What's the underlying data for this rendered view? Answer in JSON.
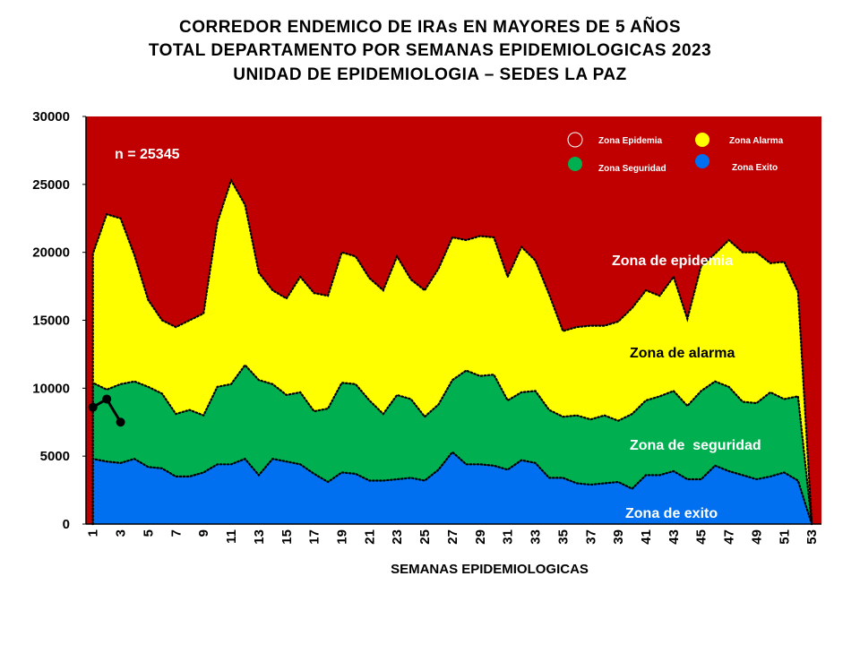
{
  "title_lines": [
    "CORREDOR ENDEMICO DE IRAs EN MAYORES DE 5 AÑOS",
    "TOTAL DEPARTAMENTO POR SEMANAS EPIDEMIOLOGICAS 2023",
    "UNIDAD DE EPIDEMIOLOGIA – SEDES LA PAZ"
  ],
  "colors": {
    "epidemia": "#c00000",
    "alarma": "#ffff00",
    "seguridad": "#00b050",
    "exito": "#0070f0"
  },
  "chart_data": {
    "type": "area",
    "xlabel": "SEMANAS EPIDEMIOLOGICAS",
    "ylabel": "",
    "ylim": [
      0,
      30000
    ],
    "yticks": [
      "0",
      "5000",
      "10000",
      "15000",
      "20000",
      "25000",
      "30000"
    ],
    "xticks": [
      "1",
      "3",
      "5",
      "7",
      "9",
      "11",
      "13",
      "15",
      "17",
      "19",
      "21",
      "23",
      "25",
      "27",
      "29",
      "31",
      "33",
      "35",
      "37",
      "39",
      "41",
      "43",
      "45",
      "47",
      "49",
      "51",
      "53"
    ],
    "n_label": "n = 25345",
    "x": [
      1,
      2,
      3,
      4,
      5,
      6,
      7,
      8,
      9,
      10,
      11,
      12,
      13,
      14,
      15,
      16,
      17,
      18,
      19,
      20,
      21,
      22,
      23,
      24,
      25,
      26,
      27,
      28,
      29,
      30,
      31,
      32,
      33,
      34,
      35,
      36,
      37,
      38,
      39,
      40,
      41,
      42,
      43,
      44,
      45,
      46,
      47,
      48,
      49,
      50,
      51,
      52,
      53
    ],
    "series": [
      {
        "name": "Zona Exito",
        "zone_label": "Zona de exito",
        "values": [
          4800,
          4600,
          4500,
          4800,
          4200,
          4100,
          3500,
          3500,
          3800,
          4400,
          4400,
          4800,
          3600,
          4800,
          4600,
          4400,
          3700,
          3100,
          3800,
          3700,
          3200,
          3200,
          3300,
          3400,
          3200,
          4000,
          5300,
          4400,
          4400,
          4300,
          4000,
          4700,
          4500,
          3400,
          3400,
          3000,
          2900,
          3000,
          3100,
          2600,
          3600,
          3600,
          3900,
          3300,
          3300,
          4300,
          3900,
          3600,
          3300,
          3500,
          3800,
          3200,
          0
        ]
      },
      {
        "name": "Zona Seguridad",
        "zone_label": "Zona de  seguridad",
        "values": [
          10400,
          9900,
          10300,
          10500,
          10100,
          9600,
          8100,
          8400,
          8000,
          10100,
          10300,
          11700,
          10600,
          10300,
          9500,
          9700,
          8300,
          8500,
          10400,
          10300,
          9100,
          8100,
          9500,
          9200,
          7900,
          8800,
          10600,
          11300,
          10900,
          11000,
          9100,
          9700,
          9800,
          8400,
          7900,
          8000,
          7700,
          8000,
          7600,
          8100,
          9100,
          9400,
          9800,
          8700,
          9800,
          10500,
          10100,
          9000,
          8900,
          9700,
          9200,
          9400,
          0
        ]
      },
      {
        "name": "Zona Alarma",
        "zone_label": "Zona de alarma",
        "values": [
          19900,
          22800,
          22500,
          19800,
          16500,
          15000,
          14500,
          15000,
          15500,
          22200,
          25300,
          23500,
          18500,
          17200,
          16600,
          18200,
          17000,
          16800,
          20000,
          19700,
          18100,
          17200,
          19700,
          18000,
          17200,
          18800,
          21100,
          20900,
          21200,
          21100,
          18200,
          20400,
          19400,
          16900,
          14200,
          14500,
          14600,
          14600,
          14900,
          15900,
          17200,
          16800,
          18200,
          15100,
          19000,
          19900,
          20900,
          20000,
          20000,
          19200,
          19300,
          17100,
          0
        ]
      },
      {
        "name": "Zona Epidemia",
        "zone_label": "Zona de epidemia",
        "values": [
          30000,
          30000,
          30000,
          30000,
          30000,
          30000,
          30000,
          30000,
          30000,
          30000,
          30000,
          30000,
          30000,
          30000,
          30000,
          30000,
          30000,
          30000,
          30000,
          30000,
          30000,
          30000,
          30000,
          30000,
          30000,
          30000,
          30000,
          30000,
          30000,
          30000,
          30000,
          30000,
          30000,
          30000,
          30000,
          30000,
          30000,
          30000,
          30000,
          30000,
          30000,
          30000,
          30000,
          30000,
          30000,
          30000,
          30000,
          30000,
          30000,
          30000,
          30000,
          30000,
          30000
        ]
      }
    ],
    "observed": {
      "x": [
        1,
        2,
        3
      ],
      "values": [
        8600,
        9200,
        7500
      ]
    },
    "legend": [
      {
        "label": "Zona Epidemia",
        "color": "#c00000"
      },
      {
        "label": "Zona Alarma",
        "color": "#ffff00"
      },
      {
        "label": "Zona Seguridad",
        "color": "#00b050"
      },
      {
        "label": "Zona Exito",
        "color": "#0070f0"
      }
    ],
    "legend_position": "top-right",
    "grid": false
  }
}
